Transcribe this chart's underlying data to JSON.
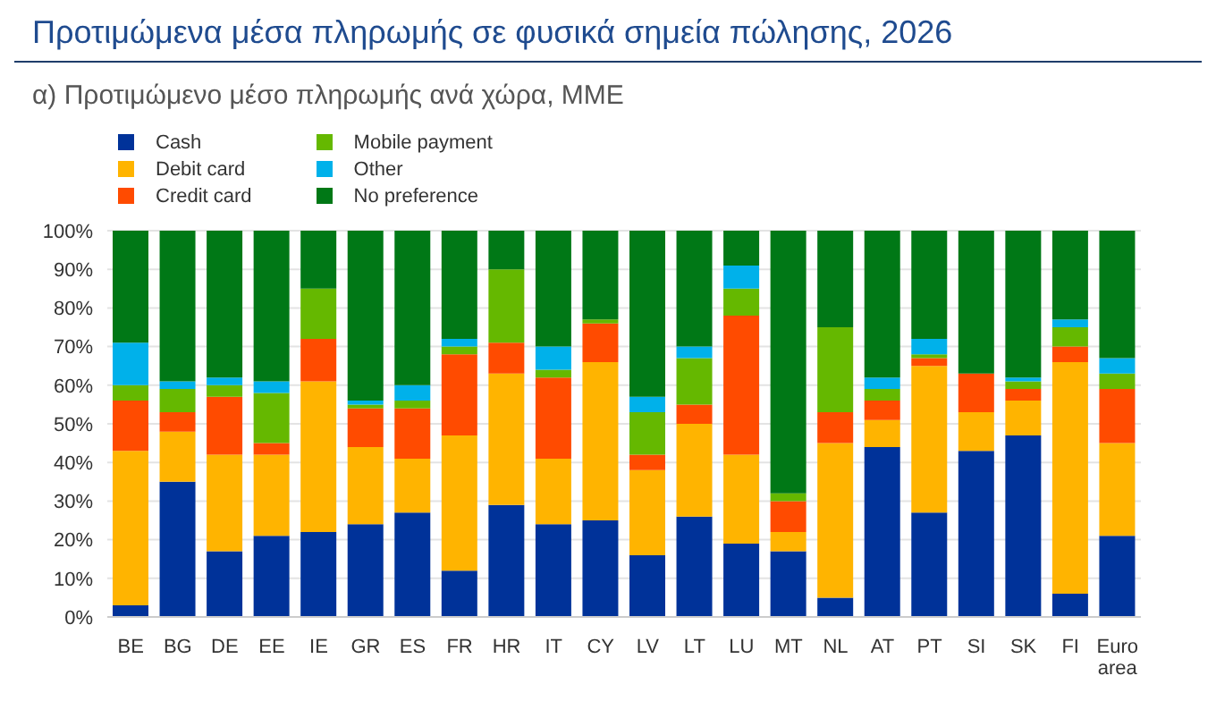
{
  "chart_data": {
    "type": "bar",
    "title": "Προτιμώμενα μέσα πληρωμής σε φυσικά σημεία πώλησης, 2026",
    "subtitle": "α) Προτιμώμενο μέσο πληρωμής ανά χώρα, ΜΜΕ",
    "stacked": true,
    "categories": [
      "BE",
      "BG",
      "DE",
      "EE",
      "IE",
      "GR",
      "ES",
      "FR",
      "HR",
      "IT",
      "CY",
      "LV",
      "LT",
      "LU",
      "MT",
      "NL",
      "AT",
      "PT",
      "SI",
      "SK",
      "FI",
      "Euro area"
    ],
    "series": [
      {
        "name": "Cash",
        "color": "#003299",
        "values": [
          3,
          35,
          17,
          21,
          22,
          24,
          27,
          12,
          29,
          24,
          25,
          16,
          26,
          19,
          17,
          5,
          44,
          27,
          43,
          47,
          6,
          21
        ]
      },
      {
        "name": "Debit card",
        "color": "#ffb400",
        "values": [
          40,
          13,
          25,
          21,
          39,
          20,
          14,
          35,
          34,
          17,
          41,
          22,
          24,
          23,
          5,
          40,
          7,
          38,
          10,
          9,
          60,
          24
        ]
      },
      {
        "name": "Credit card",
        "color": "#ff4b00",
        "values": [
          13,
          5,
          15,
          3,
          11,
          10,
          13,
          21,
          8,
          21,
          10,
          4,
          5,
          36,
          8,
          8,
          5,
          2,
          10,
          3,
          4,
          14
        ]
      },
      {
        "name": "Mobile payment",
        "color": "#65b800",
        "values": [
          4,
          6,
          3,
          13,
          13,
          1,
          2,
          2,
          19,
          2,
          1,
          11,
          12,
          7,
          2,
          22,
          3,
          1,
          0,
          2,
          5,
          4
        ]
      },
      {
        "name": "Other",
        "color": "#00b1ea",
        "values": [
          11,
          2,
          2,
          3,
          0,
          1,
          4,
          2,
          0,
          6,
          0,
          4,
          3,
          6,
          0,
          0,
          3,
          4,
          0,
          1,
          2,
          4
        ]
      },
      {
        "name": "No preference",
        "color": "#007816",
        "values": [
          29,
          39,
          38,
          39,
          15,
          44,
          40,
          28,
          10,
          30,
          23,
          43,
          30,
          9,
          68,
          25,
          38,
          28,
          37,
          38,
          23,
          33
        ]
      }
    ],
    "ylim": [
      0,
      100
    ],
    "yticks": [
      {
        "value": 0,
        "label": "0%"
      },
      {
        "value": 10,
        "label": "10%"
      },
      {
        "value": 20,
        "label": "20%"
      },
      {
        "value": 30,
        "label": "30%"
      },
      {
        "value": 40,
        "label": "40%"
      },
      {
        "value": 50,
        "label": "50%"
      },
      {
        "value": 60,
        "label": "60%"
      },
      {
        "value": 70,
        "label": "70%"
      },
      {
        "value": 80,
        "label": "80%"
      },
      {
        "value": 90,
        "label": "90%"
      },
      {
        "value": 100,
        "label": "100%"
      }
    ],
    "grid": "y",
    "legend": "top left"
  }
}
